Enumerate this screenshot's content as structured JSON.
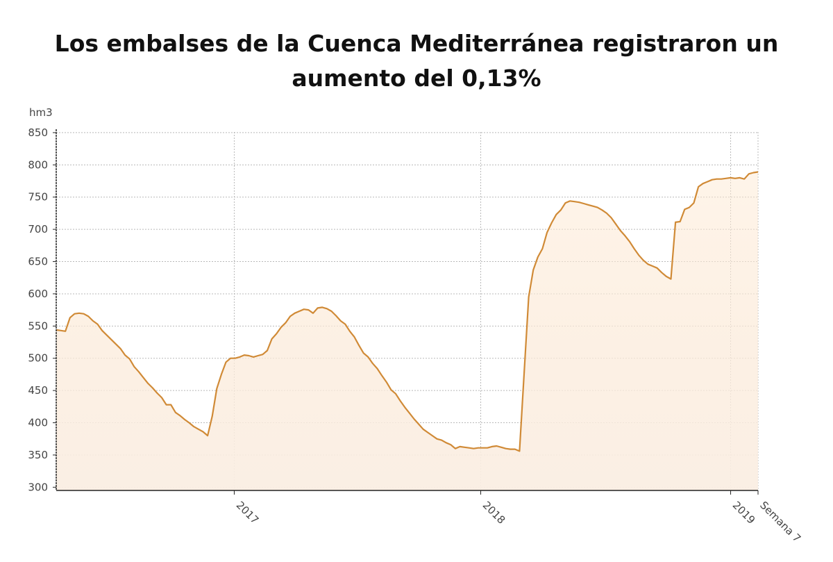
{
  "chart_data": {
    "type": "area",
    "title": "Los embalses de la Cuenca Mediterránea registraron un aumento del 0,13%",
    "ylabel": "hm3",
    "xlabel": "",
    "ylim": [
      295,
      851
    ],
    "yticks": [
      300,
      350,
      400,
      450,
      500,
      550,
      600,
      650,
      700,
      750,
      800,
      850
    ],
    "x_ticks": [
      {
        "label": "2017",
        "week": 52
      },
      {
        "label": "2018",
        "week": 124
      },
      {
        "label": "2019",
        "week": 197
      },
      {
        "label": "Semana 7",
        "week": 205
      }
    ],
    "x_range": [
      0,
      205
    ],
    "grid": true,
    "colors": {
      "line": "#d08a36",
      "fill_top": "#fde7cf",
      "fill_bottom": "#faeee3",
      "axis": "#222222",
      "grid": "#b8b8b8"
    },
    "series": [
      {
        "name": "",
        "values": [
          544,
          543,
          542,
          563,
          569,
          570,
          569,
          565,
          558,
          553,
          543,
          536,
          529,
          522,
          515,
          505,
          499,
          487,
          479,
          470,
          461,
          454,
          446,
          439,
          428,
          428,
          416,
          411,
          405,
          400,
          394,
          390,
          386,
          380,
          410,
          453,
          475,
          494,
          500,
          500,
          502,
          505,
          504,
          502,
          504,
          506,
          512,
          530,
          538,
          548,
          555,
          565,
          570,
          573,
          576,
          575,
          570,
          578,
          579,
          577,
          573,
          566,
          558,
          553,
          542,
          533,
          520,
          508,
          502,
          492,
          484,
          473,
          463,
          451,
          445,
          434,
          424,
          415,
          406,
          398,
          390,
          385,
          380,
          375,
          373,
          369,
          366,
          360,
          363,
          362,
          361,
          360,
          361,
          361,
          361,
          363,
          364,
          362,
          360,
          359,
          359,
          356,
          476,
          595,
          637,
          657,
          670,
          695,
          710,
          723,
          730,
          741,
          744,
          743,
          742,
          740,
          738,
          736,
          734,
          730,
          725,
          718,
          708,
          698,
          690,
          681,
          670,
          660,
          652,
          646,
          643,
          640,
          633,
          627,
          623,
          711,
          712,
          731,
          734,
          741,
          766,
          771,
          774,
          777,
          778,
          778,
          779,
          780,
          779,
          780,
          778,
          786,
          788,
          789
        ]
      }
    ]
  }
}
